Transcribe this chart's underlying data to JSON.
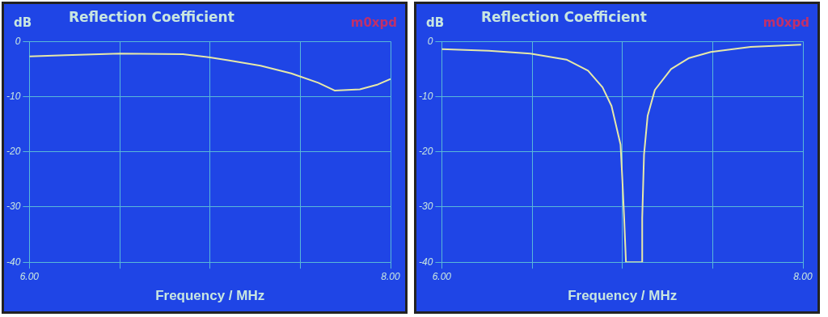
{
  "chart_data": [
    {
      "type": "line",
      "title": "Reflection Coefficient",
      "ylabel": "dB",
      "xlabel": "Frequency / MHz",
      "annotations": [
        "m0xpd"
      ],
      "grid": true,
      "xlim": [
        6,
        8
      ],
      "xticks": [
        {
          "value": 6,
          "label": "6.00"
        },
        {
          "value": 6.5,
          "label": null
        },
        {
          "value": 7,
          "label": null
        },
        {
          "value": 7.5,
          "label": null
        },
        {
          "value": 8,
          "label": "8.00"
        }
      ],
      "ylim": [
        -40,
        0
      ],
      "yticks": [
        0,
        -10,
        -20,
        -30,
        -40
      ],
      "series": [
        {
          "color": "#e6e8a8",
          "x": [
            6.0,
            6.2,
            6.5,
            6.85,
            7.0,
            7.1,
            7.28,
            7.45,
            7.6,
            7.69,
            7.83,
            7.93,
            8.0
          ],
          "values": [
            -2.7,
            -2.5,
            -2.2,
            -2.3,
            -2.9,
            -3.4,
            -4.4,
            -5.8,
            -7.5,
            -8.9,
            -8.7,
            -7.8,
            -6.8
          ]
        }
      ]
    },
    {
      "type": "line",
      "title": "Reflection Coefficient",
      "ylabel": "dB",
      "xlabel": "Frequency / MHz",
      "annotations": [
        "m0xpd"
      ],
      "grid": true,
      "xlim": [
        6,
        8
      ],
      "xticks": [
        {
          "value": 6,
          "label": "6.00"
        },
        {
          "value": 6.5,
          "label": null
        },
        {
          "value": 7,
          "label": null
        },
        {
          "value": 7.5,
          "label": null
        },
        {
          "value": 8,
          "label": "8.00"
        }
      ],
      "ylim": [
        -40,
        0
      ],
      "yticks": [
        0,
        -10,
        -20,
        -30,
        -40
      ],
      "series": [
        {
          "color": "#e6e8a8",
          "x": [
            6.0,
            6.26,
            6.49,
            6.69,
            6.81,
            6.89,
            6.94,
            6.99,
            7.0,
            7.01,
            7.02,
            7.11,
            7.11,
            7.12,
            7.14,
            7.18,
            7.27,
            7.37,
            7.49,
            7.71,
            7.99
          ],
          "values": [
            -1.4,
            -1.7,
            -2.2,
            -3.3,
            -5.3,
            -8.3,
            -11.7,
            -18.7,
            -25,
            -32,
            -40,
            -40,
            -32,
            -20.5,
            -13.5,
            -8.8,
            -5,
            -3,
            -1.9,
            -1.0,
            -0.6
          ]
        }
      ]
    }
  ]
}
